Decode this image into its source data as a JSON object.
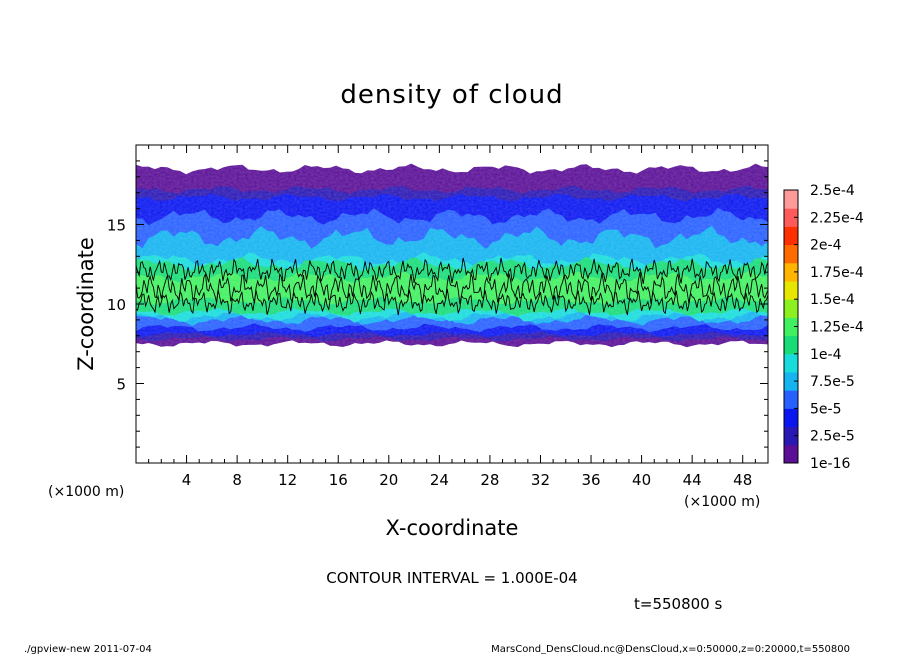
{
  "chart_data": {
    "type": "heatmap",
    "title": "density of cloud",
    "xlabel": "X-coordinate",
    "ylabel": "Z-coordinate",
    "x_unit": "(×1000 m)",
    "y_unit": "(×1000 m)",
    "xlim": [
      0,
      50
    ],
    "ylim": [
      0,
      20
    ],
    "x_ticks": [
      4,
      8,
      12,
      16,
      20,
      24,
      28,
      32,
      36,
      40,
      44,
      48
    ],
    "y_ticks": [
      5,
      10,
      15
    ],
    "contour_note": "CONTOUR INTERVAL = 1.000E-04",
    "time_label": "t=550800 s",
    "colorbar": {
      "labels": [
        "1e-16",
        "2.5e-5",
        "5e-5",
        "7.5e-5",
        "1e-4",
        "1.25e-4",
        "1.5e-4",
        "1.75e-4",
        "2e-4",
        "2.25e-4",
        "2.5e-4"
      ],
      "colors": [
        "#5a0f96",
        "#2a18b4",
        "#0a16f0",
        "#2860ff",
        "#14b4f0",
        "#18dcdc",
        "#18dc78",
        "#40f060",
        "#8cf020",
        "#e6e600",
        "#ffb400",
        "#ff6a00",
        "#ff3000",
        "#ff5a5a",
        "#ff9a9a"
      ]
    },
    "cloud_layer": {
      "bottom_km": 7.5,
      "top_km": 18.5,
      "dense_band_km": [
        9.5,
        12.5
      ],
      "peak_value": 0.00015
    }
  },
  "footer": {
    "left": "./gpview-new   2011-07-04",
    "right": "MarsCond_DensCloud.nc@DensCloud,x=0:50000,z=0:20000,t=550800"
  }
}
